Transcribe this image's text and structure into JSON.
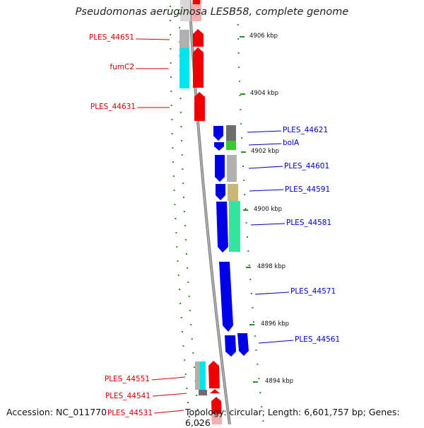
{
  "title": "Pseudomonas aeruginosa LESB58, complete genome",
  "footer": {
    "accession": "Accession: NC_011770",
    "summary": "Topology: circular; Length: 6,601,757 bp; Genes: 6,026"
  },
  "ticks": [
    "4906 kbp",
    "4904 kbp",
    "4902 kbp",
    "4900 kbp",
    "4898 kbp",
    "4896 kbp",
    "4894 kbp"
  ],
  "labels_left": [
    "PLES_44651",
    "fumC2",
    "PLES_44631",
    "PLES_44551",
    "PLES_44541",
    "PLES_44531"
  ],
  "labels_right": [
    "PLES_44621",
    "bolA",
    "PLES_44601",
    "PLES_44591",
    "PLES_44581",
    "PLES_44571",
    "PLES_44561"
  ],
  "colors": {
    "forward_strand": "#ee0000",
    "reverse_strand": "#0000e6",
    "label_left": "#d40000",
    "label_right": "#0000c8",
    "backbone": "#888888",
    "dots": "#2e8b2e",
    "cog_cyan": "#00e5ee",
    "cog_gray": "#b0b0b0",
    "cog_darkgray": "#6e6e6e",
    "cog_green": "#33cc33",
    "cog_khaki": "#c8b878",
    "cog_aquamarine": "#33e6a0"
  }
}
